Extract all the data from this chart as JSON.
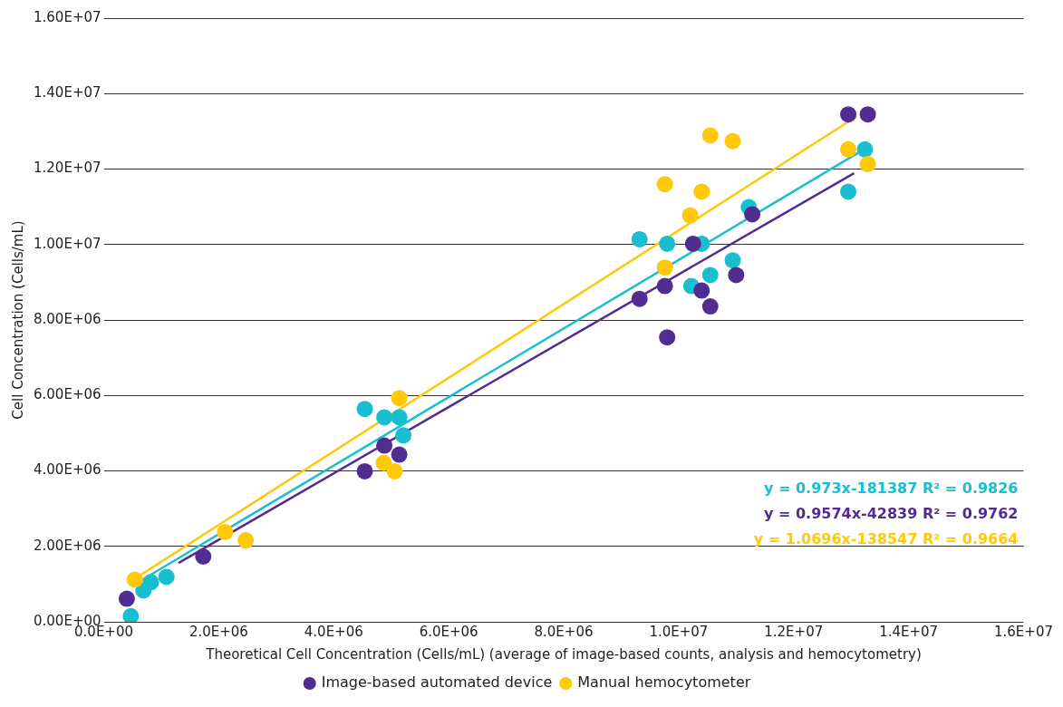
{
  "chart_data": {
    "type": "scatter",
    "xlabel": "Theoretical Cell Concentration (Cells/mL) (average of image-based counts, analysis and hemocytometry)",
    "ylabel": "Cell Concentration (Cells/mL)",
    "xlim": [
      0,
      16000000
    ],
    "ylim": [
      0,
      16000000
    ],
    "xticks": [
      {
        "value": 0,
        "label": "0.0E+00"
      },
      {
        "value": 2000000,
        "label": "2.0E+06"
      },
      {
        "value": 4000000,
        "label": "4.0E+06"
      },
      {
        "value": 6000000,
        "label": "6.0E+06"
      },
      {
        "value": 8000000,
        "label": "8.0E+06"
      },
      {
        "value": 10000000,
        "label": "1.0E+07"
      },
      {
        "value": 12000000,
        "label": "1.2E+07"
      },
      {
        "value": 14000000,
        "label": "1.4E+07"
      },
      {
        "value": 16000000,
        "label": "1.6E+07"
      }
    ],
    "yticks": [
      {
        "value": 0,
        "label": "0.00E+00"
      },
      {
        "value": 2000000,
        "label": "2.00E+06"
      },
      {
        "value": 4000000,
        "label": "4.00E+06"
      },
      {
        "value": 6000000,
        "label": "6.00E+06"
      },
      {
        "value": 8000000,
        "label": "8.00E+06"
      },
      {
        "value": 10000000,
        "label": "1.00E+07"
      },
      {
        "value": 12000000,
        "label": "1.20E+07"
      },
      {
        "value": 14000000,
        "label": "1.40E+07"
      },
      {
        "value": 16000000,
        "label": "1.60E+07"
      }
    ],
    "grid": "y",
    "legend": "bottom",
    "marker": "circle",
    "series": [
      {
        "name": "Image-based automated device",
        "color": "#522d91",
        "x": [
          400000,
          1730000,
          4540000,
          4880000,
          5140000,
          9320000,
          9760000,
          9800000,
          10250000,
          10400000,
          10550000,
          11000000,
          11280000,
          12950000,
          13290000
        ],
        "values": [
          610000,
          1730000,
          3990000,
          4670000,
          4430000,
          8560000,
          8900000,
          7540000,
          10020000,
          8780000,
          8360000,
          9190000,
          10800000,
          13450000,
          13450000
        ]
      },
      {
        "name": "Manual hemocytometer",
        "color": "#ffc907",
        "x": [
          540000,
          2110000,
          2470000,
          4870000,
          5060000,
          5140000,
          9760000,
          9760000,
          10200000,
          10400000,
          10550000,
          10940000,
          12950000,
          13290000
        ],
        "values": [
          1120000,
          2380000,
          2160000,
          4210000,
          3990000,
          5930000,
          11600000,
          9390000,
          10770000,
          11400000,
          12890000,
          12740000,
          12520000,
          12130000
        ]
      },
      {
        "color": "#19bfcf",
        "x": [
          470000,
          690000,
          820000,
          1090000,
          4540000,
          4880000,
          5140000,
          5210000,
          9320000,
          9800000,
          10220000,
          10400000,
          10550000,
          10940000,
          11220000,
          12950000,
          13240000
        ],
        "values": [
          150000,
          830000,
          1050000,
          1190000,
          5640000,
          5420000,
          5420000,
          4940000,
          10140000,
          10020000,
          8900000,
          10020000,
          9190000,
          9580000,
          10990000,
          11400000,
          12520000
        ]
      },
      {
        "type": "line",
        "color": "#19bfcf",
        "marker": "none",
        "x": [
          600000,
          13200000
        ],
        "values": [
          1050000,
          12500000
        ]
      },
      {
        "type": "line",
        "color": "#522d91",
        "marker": "none",
        "x": [
          1300000,
          13050000
        ],
        "values": [
          1560000,
          11890000
        ]
      },
      {
        "type": "line",
        "color": "#ffc907",
        "marker": "none",
        "x": [
          600000,
          13100000
        ],
        "values": [
          1200000,
          13400000
        ]
      }
    ],
    "annotations": [
      "y = 0.973x-181387 R² = 0.9826",
      "y = 0.9574x-42839 R² = 0.9762",
      "y = 1.0696x-138547 R² = 0.9664"
    ]
  }
}
